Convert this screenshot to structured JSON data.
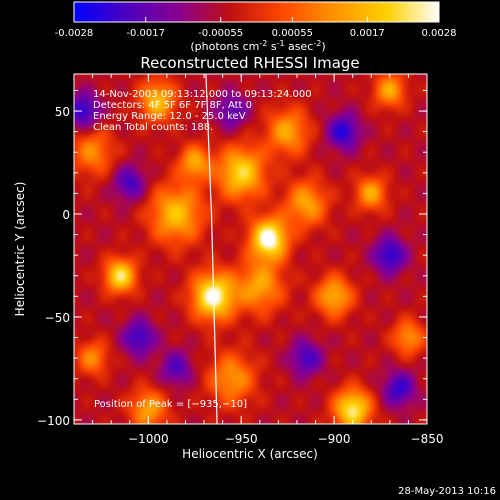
{
  "colorbar": {
    "ticks": [
      "-0.0028",
      "-0.0017",
      "-0.00055",
      "0.00055",
      "0.0017",
      "0.0028"
    ],
    "tick_values": [
      -0.0028,
      -0.0017,
      -0.00055,
      0.00055,
      0.0017,
      0.0028
    ],
    "units_base": "(photons cm",
    "units_exp1": "-2",
    "units_mid": " s",
    "units_exp2": "-1",
    "units_mid2": " asec",
    "units_exp3": "-2",
    "units_end": ")",
    "range": [
      -0.0028,
      0.0028
    ],
    "colormap": [
      "#0000ff",
      "#4b00c0",
      "#8a0090",
      "#c01010",
      "#ff4800",
      "#ff9400",
      "#ffd000",
      "#ffffff"
    ]
  },
  "chart_data": {
    "type": "heatmap",
    "title": "Reconstructed RHESSI Image",
    "xlabel": "Heliocentric X (arcsec)",
    "ylabel": "Heliocentric Y (arcsec)",
    "xlim": [
      -1040,
      -850
    ],
    "ylim": [
      -102,
      68
    ],
    "x_ticks": [
      -1000,
      -950,
      -900,
      -850
    ],
    "x_tick_labels": [
      "−1000",
      "−950",
      "−900",
      "−850"
    ],
    "y_ticks": [
      -100,
      -50,
      0,
      50
    ],
    "y_tick_labels": [
      "−100",
      "−50",
      "0",
      "50"
    ],
    "annotations": [
      "14-Nov-2003 09:13:12.000 to 09:13:24.000",
      "Detectors: 4F 5F 6F 7F 8F, Att 0",
      "Energy Range: 12.0 - 25.0 keV",
      "Clean    Total counts: 188."
    ],
    "peak_text": "Position of Peak = [−935,−10]",
    "peak": [
      -935,
      -10
    ],
    "limb_line": [
      [
        -969,
        68
      ],
      [
        -966,
        0
      ],
      [
        -963,
        -102
      ]
    ],
    "blobs": [
      {
        "x": -935,
        "y": -12,
        "amp": 1.0,
        "s": 7
      },
      {
        "x": -965,
        "y": -40,
        "amp": 0.95,
        "s": 8
      },
      {
        "x": -950,
        "y": 20,
        "amp": 0.75,
        "s": 9
      },
      {
        "x": -985,
        "y": 0,
        "amp": 0.65,
        "s": 10
      },
      {
        "x": -1015,
        "y": -30,
        "amp": 0.8,
        "s": 6
      },
      {
        "x": -995,
        "y": 55,
        "amp": 0.65,
        "s": 7
      },
      {
        "x": -940,
        "y": -35,
        "amp": 0.55,
        "s": 9
      },
      {
        "x": -915,
        "y": 5,
        "amp": 0.55,
        "s": 8
      },
      {
        "x": -900,
        "y": -40,
        "amp": 0.6,
        "s": 7
      },
      {
        "x": -880,
        "y": 10,
        "amp": 0.55,
        "s": 6
      },
      {
        "x": -925,
        "y": 40,
        "amp": 0.55,
        "s": 8
      },
      {
        "x": -890,
        "y": -95,
        "amp": 0.85,
        "s": 7
      },
      {
        "x": -1000,
        "y": -95,
        "amp": 0.55,
        "s": 7
      },
      {
        "x": -955,
        "y": -80,
        "amp": 0.5,
        "s": 9
      },
      {
        "x": -1030,
        "y": 30,
        "amp": 0.45,
        "s": 8
      },
      {
        "x": -870,
        "y": 60,
        "amp": 0.55,
        "s": 6
      },
      {
        "x": -860,
        "y": -60,
        "amp": 0.5,
        "s": 6
      },
      {
        "x": -1030,
        "y": -70,
        "amp": 0.45,
        "s": 6
      },
      {
        "x": -975,
        "y": 25,
        "amp": 0.55,
        "s": 6
      },
      {
        "x": -1035,
        "y": 50,
        "amp": -0.55,
        "s": 6
      },
      {
        "x": -1005,
        "y": -60,
        "amp": -0.5,
        "s": 6
      },
      {
        "x": -895,
        "y": 40,
        "amp": -0.55,
        "s": 6
      },
      {
        "x": -870,
        "y": -20,
        "amp": -0.55,
        "s": 6
      },
      {
        "x": -915,
        "y": -70,
        "amp": -0.45,
        "s": 6
      },
      {
        "x": -1010,
        "y": 15,
        "amp": -0.45,
        "s": 6
      },
      {
        "x": -955,
        "y": 50,
        "amp": -0.4,
        "s": 6
      },
      {
        "x": -865,
        "y": -85,
        "amp": -0.5,
        "s": 6
      },
      {
        "x": -985,
        "y": -75,
        "amp": -0.4,
        "s": 6
      }
    ]
  },
  "footer": {
    "date": "28-May-2013 10:16"
  }
}
